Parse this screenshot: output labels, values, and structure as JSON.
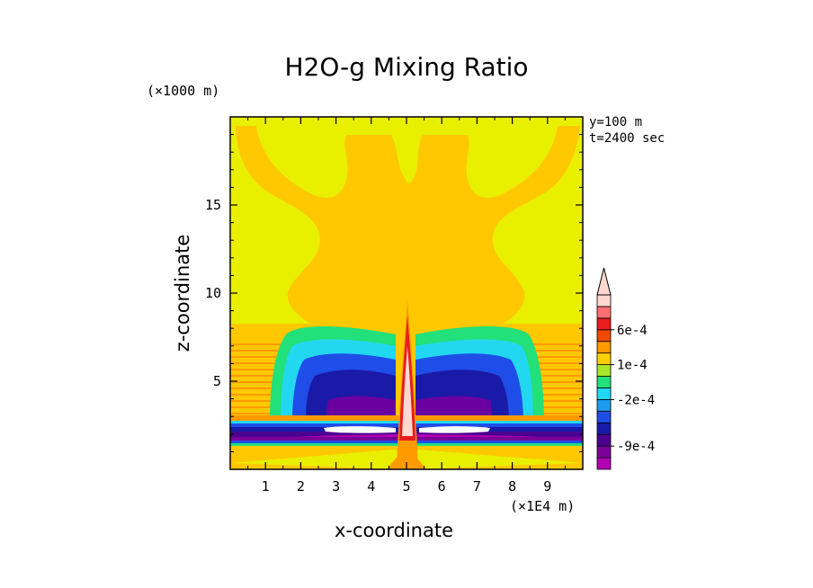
{
  "chart_data": {
    "type": "heatmap",
    "title": "H2O-g Mixing Ratio",
    "xlabel": "x-coordinate",
    "ylabel": "z-coordinate",
    "x_unit": "(×1E4 m)",
    "y_unit": "(×1000 m)",
    "annotations": [
      "y=100 m",
      "t=2400 sec"
    ],
    "xlim": [
      0,
      10
    ],
    "ylim": [
      0,
      20
    ],
    "x_ticks": [
      1,
      2,
      3,
      4,
      5,
      6,
      7,
      8,
      9
    ],
    "y_ticks": [
      5,
      10,
      15
    ],
    "colorbar": {
      "levels": [
        "-12e-4",
        "-10.5e-4",
        "-9e-4",
        "-7.5e-4",
        "-5e-4",
        "-3.5e-4",
        "-2e-4",
        "-1e-4",
        "0",
        "1e-4",
        "2e-4",
        "4e-4",
        "6e-4",
        "8e-4"
      ],
      "labels": [
        "6e-4",
        "1e-4",
        "-2e-4",
        "-9e-4"
      ],
      "colors": [
        "#b000b0",
        "#7a0098",
        "#4b0090",
        "#1a1aa8",
        "#1f4de8",
        "#1e9cf0",
        "#22d8f0",
        "#22e07a",
        "#a8e82c",
        "#ffd000",
        "#ff9a00",
        "#f04a00",
        "#e81c1c",
        "#ff7070",
        "#ffd8d0"
      ],
      "extend": "max"
    },
    "features": [
      {
        "name": "background",
        "value_class": "near zero (yellow)"
      },
      {
        "name": "upper plume",
        "x_range": [
          1,
          9.5
        ],
        "z_range": [
          8,
          19
        ],
        "value_class": "1e-4 (orange)"
      },
      {
        "name": "left cool cell",
        "x_range": [
          2.5,
          4.8
        ],
        "z_range": [
          2,
          8
        ],
        "value_class": "-9e-4 to -2e-4"
      },
      {
        "name": "right cool cell",
        "x_range": [
          5.2,
          7.7
        ],
        "z_range": [
          2,
          8
        ],
        "value_class": "-9e-4 to -2e-4"
      },
      {
        "name": "central column",
        "x_range": [
          4.85,
          5.15
        ],
        "z_range": [
          0,
          9.5
        ],
        "value_class": "6e-4 and above"
      },
      {
        "name": "low-level band",
        "x_range": [
          0,
          10
        ],
        "z_range": [
          1.7,
          3
        ],
        "value_class": "-12e-4 to -5e-4"
      }
    ]
  }
}
